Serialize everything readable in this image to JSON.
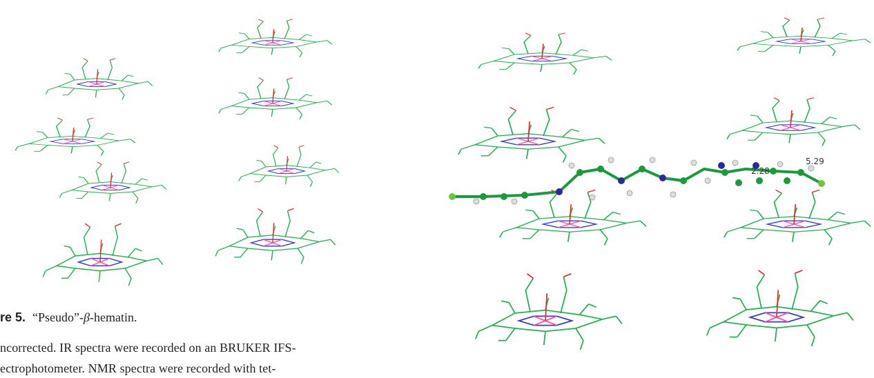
{
  "figure_caption": {
    "label": "re 5.",
    "text_before": "“Pseudo”-",
    "symbol": "β",
    "text_after": "-hematin."
  },
  "body_lines": [
    "ncorrected. IR spectra were recorded on an BRUKER IFS-",
    "ectrophotometer. NMR spectra were recorded with tet-"
  ],
  "distance_labels": [
    "2.28",
    "5.29"
  ]
}
